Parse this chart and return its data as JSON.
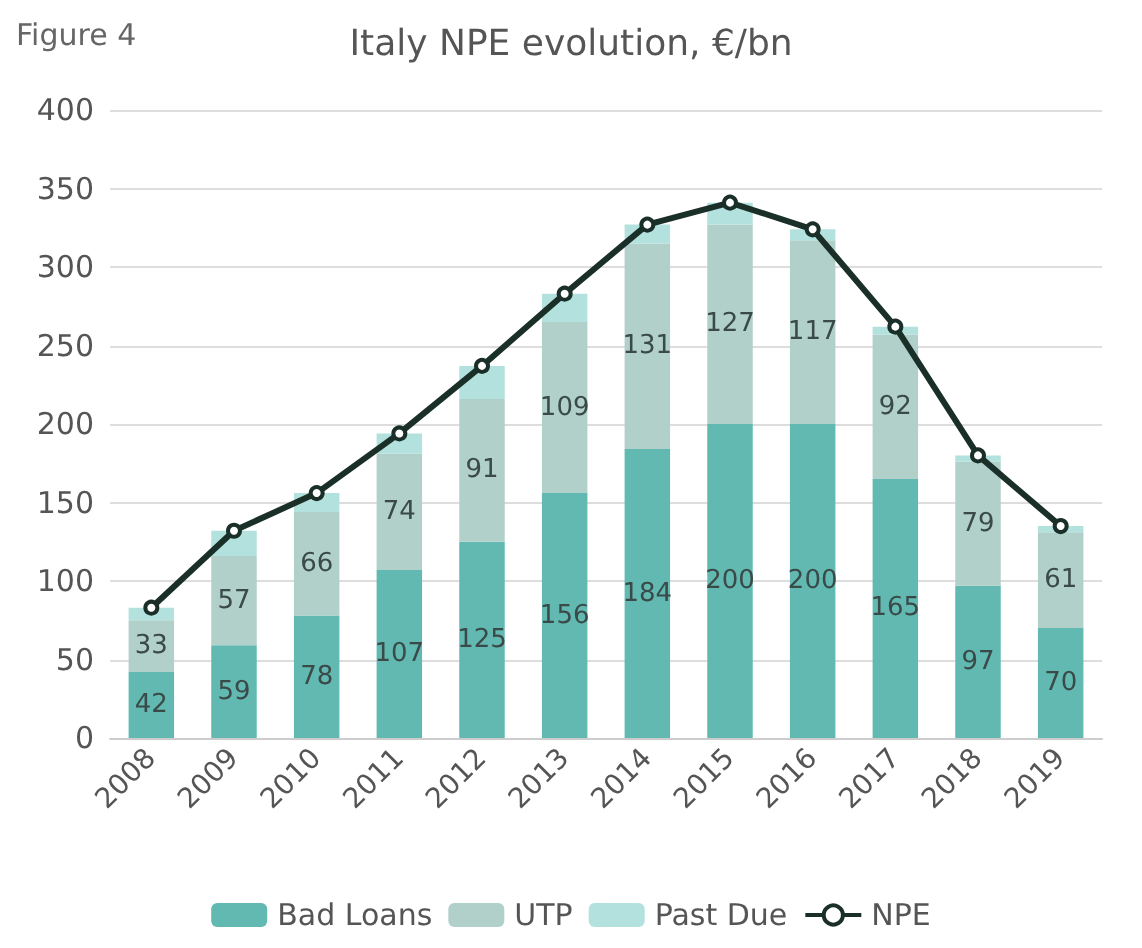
{
  "chart_data": {
    "type": "bar",
    "title": "Italy NPE evolution, €/bn",
    "annotations": [
      "Figure 4"
    ],
    "categories": [
      "2008",
      "2009",
      "2010",
      "2011",
      "2012",
      "2013",
      "2014",
      "2015",
      "2016",
      "2017",
      "2018",
      "2019"
    ],
    "stacked": true,
    "ylim": [
      0,
      400
    ],
    "yticks": [
      0,
      50,
      100,
      150,
      200,
      250,
      300,
      350,
      400
    ],
    "grid": "y",
    "legend": "bottom",
    "series": [
      {
        "name": "Bad Loans",
        "color": "#62b9b1",
        "values": [
          42,
          59,
          78,
          107,
          125,
          156,
          184,
          200,
          200,
          165,
          97,
          70
        ],
        "value_labels": [
          "42",
          "59",
          "78",
          "107",
          "125",
          "156",
          "184",
          "200",
          "200",
          "165",
          "97",
          "70"
        ]
      },
      {
        "name": "UTP",
        "color": "#b1d0ca",
        "values": [
          33,
          57,
          66,
          74,
          91,
          109,
          131,
          127,
          117,
          92,
          79,
          61
        ],
        "value_labels": [
          "33",
          "57",
          "66",
          "74",
          "91",
          "109",
          "131",
          "127",
          "117",
          "92",
          "79",
          "61"
        ]
      },
      {
        "name": "Past Due",
        "color": "#b3e1dd",
        "values": [
          8,
          16,
          12,
          13,
          21,
          18,
          12,
          14,
          7,
          5,
          4,
          4
        ]
      },
      {
        "name": "NPE",
        "type": "line",
        "color": "#1b2f29",
        "marker": "circle",
        "line_style": "solid",
        "values": [
          83,
          132,
          156,
          194,
          237,
          283,
          327,
          341,
          324,
          262,
          180,
          135
        ]
      }
    ]
  }
}
